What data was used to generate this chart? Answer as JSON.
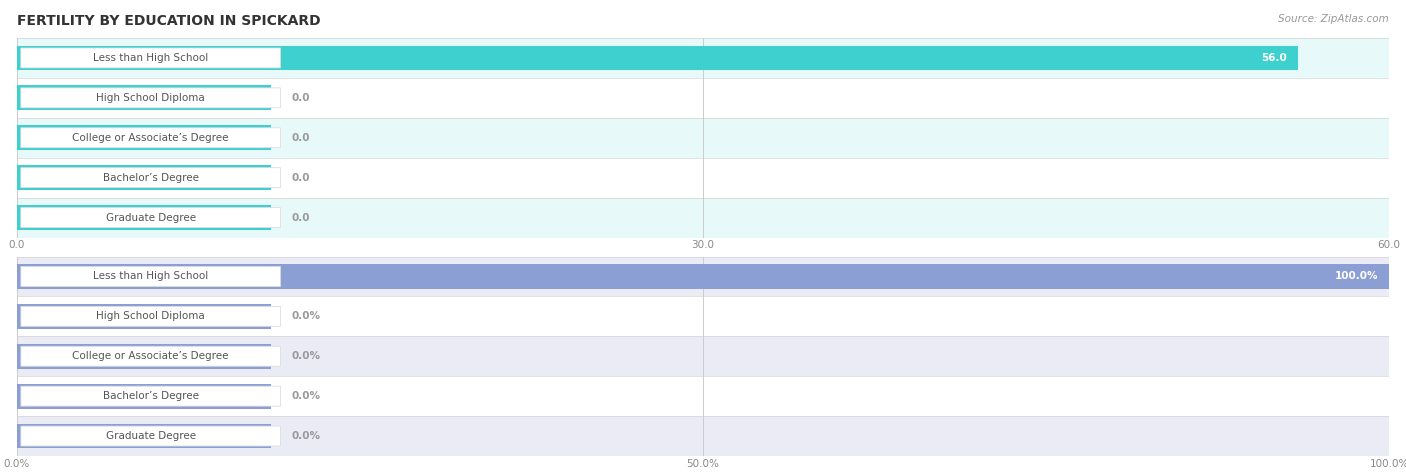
{
  "title": "FERTILITY BY EDUCATION IN SPICKARD",
  "source": "Source: ZipAtlas.com",
  "categories": [
    "Less than High School",
    "High School Diploma",
    "College or Associate’s Degree",
    "Bachelor’s Degree",
    "Graduate Degree"
  ],
  "chart1": {
    "values": [
      56.0,
      0.0,
      0.0,
      0.0,
      0.0
    ],
    "xlim": [
      0,
      60.0
    ],
    "xticks": [
      0.0,
      30.0,
      60.0
    ],
    "xtick_labels": [
      "0.0",
      "30.0",
      "60.0"
    ],
    "bar_color": "#3ECFCF",
    "row_bg_even": "#E8F9F9",
    "row_bg_odd": "#FFFFFF",
    "bar_label_inside_color": "#FFFFFF",
    "bar_label_outside_color": "#999999"
  },
  "chart2": {
    "values": [
      100.0,
      0.0,
      0.0,
      0.0,
      0.0
    ],
    "xlim": [
      0,
      100.0
    ],
    "xticks": [
      0.0,
      50.0,
      100.0
    ],
    "xtick_labels": [
      "0.0%",
      "50.0%",
      "100.0%"
    ],
    "bar_color": "#8B9FD4",
    "row_bg_even": "#EBEBF5",
    "row_bg_odd": "#FFFFFF",
    "bar_label_inside_color": "#FFFFFF",
    "bar_label_outside_color": "#999999"
  },
  "label_box_facecolor": "#FFFFFF",
  "label_box_edgecolor": "#DDDDDD",
  "label_text_color": "#555555",
  "title_color": "#333333",
  "source_color": "#999999",
  "title_fontsize": 10,
  "label_fontsize": 7.5,
  "value_fontsize": 7.5,
  "tick_fontsize": 7.5
}
